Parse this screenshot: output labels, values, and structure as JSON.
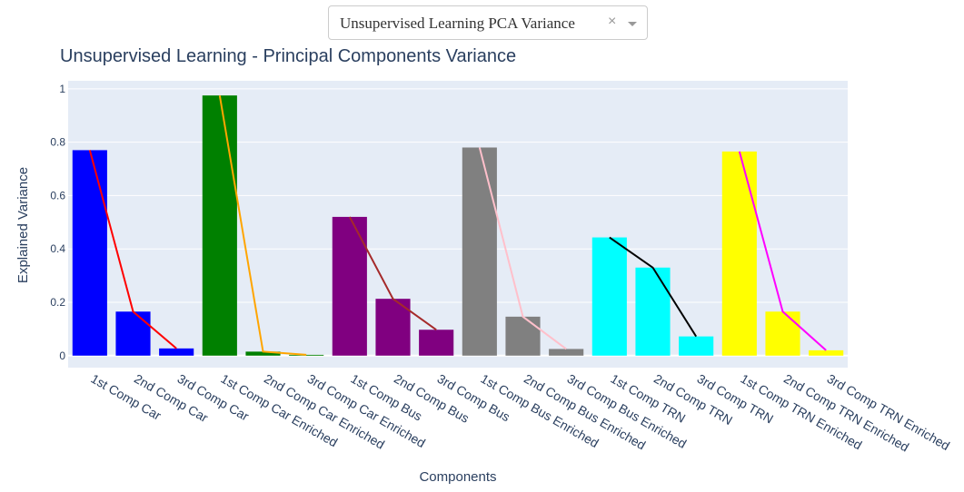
{
  "dropdown": {
    "selected": "Unsupervised Learning PCA Variance",
    "clear_glyph": "×"
  },
  "chart_data": {
    "type": "bar",
    "title": "Unsupervised Learning - Principal Components Variance",
    "xlabel": "Components",
    "ylabel": "Explained Variance",
    "ylim": [
      -0.045,
      1.03
    ],
    "yticks": [
      0,
      0.2,
      0.4,
      0.6,
      0.8,
      1
    ],
    "ytick_labels": [
      "0",
      "0.2",
      "0.4",
      "0.6",
      "0.8",
      "1"
    ],
    "grid": true,
    "categories": [
      "1st Comp Car",
      "2nd Comp Car",
      "3rd Comp Car",
      "1st Comp Car Enriched",
      "2nd Comp Car Enriched",
      "3rd Comp Car Enriched",
      "1st Comp Bus",
      "2nd Comp Bus",
      "3rd Comp Bus",
      "1st Comp Bus Enriched",
      "2nd Comp Bus Enriched",
      "3rd Comp Bus Enriched",
      "1st Comp TRN",
      "2nd Comp TRN",
      "3rd Comp TRN",
      "1st Comp TRN Enriched",
      "2nd Comp TRN Enriched",
      "3rd Comp TRN Enriched"
    ],
    "groups": [
      {
        "bar_color": "#0000ff",
        "line_color": "#ff0000",
        "values": [
          0.77,
          0.165,
          0.027
        ]
      },
      {
        "bar_color": "#008000",
        "line_color": "#ffa500",
        "values": [
          0.975,
          0.015,
          0.003
        ]
      },
      {
        "bar_color": "#800080",
        "line_color": "#a52a2a",
        "values": [
          0.52,
          0.213,
          0.097
        ]
      },
      {
        "bar_color": "#808080",
        "line_color": "#ffc0cb",
        "values": [
          0.78,
          0.146,
          0.025
        ]
      },
      {
        "bar_color": "#00ffff",
        "line_color": "#000000",
        "values": [
          0.443,
          0.33,
          0.072
        ]
      },
      {
        "bar_color": "#ffff00",
        "line_color": "#ff00ff",
        "values": [
          0.765,
          0.165,
          0.02
        ]
      }
    ]
  }
}
